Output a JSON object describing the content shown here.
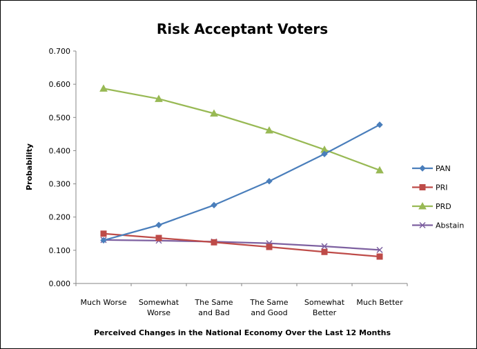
{
  "chart_data": {
    "type": "line",
    "title": "Risk Acceptant Voters",
    "xlabel": "Perceived Changes in the National Economy Over the Last 12 Months",
    "ylabel": "Probability",
    "ylim": [
      0,
      0.7
    ],
    "yticks": [
      "0.000",
      "0.100",
      "0.200",
      "0.300",
      "0.400",
      "0.500",
      "0.600",
      "0.700"
    ],
    "categories": [
      [
        "Much Worse"
      ],
      [
        "Somewhat",
        "Worse"
      ],
      [
        "The Same",
        "and Bad"
      ],
      [
        "The Same",
        "and Good"
      ],
      [
        "Somewhat",
        "Better"
      ],
      [
        "Much Better"
      ]
    ],
    "grid": false,
    "legend_position": "right",
    "series": [
      {
        "name": "PAN",
        "color": "#4a7ebb",
        "marker": "diamond",
        "values": [
          0.13,
          0.176,
          0.236,
          0.308,
          0.39,
          0.478
        ]
      },
      {
        "name": "PRI",
        "color": "#be4b48",
        "marker": "square",
        "values": [
          0.15,
          0.137,
          0.124,
          0.11,
          0.095,
          0.081
        ]
      },
      {
        "name": "PRD",
        "color": "#98b954",
        "marker": "triangle",
        "values": [
          0.587,
          0.556,
          0.512,
          0.461,
          0.403,
          0.341
        ]
      },
      {
        "name": "Abstain",
        "color": "#7d60a0",
        "marker": "x",
        "values": [
          0.131,
          0.129,
          0.126,
          0.121,
          0.112,
          0.101
        ]
      }
    ]
  }
}
